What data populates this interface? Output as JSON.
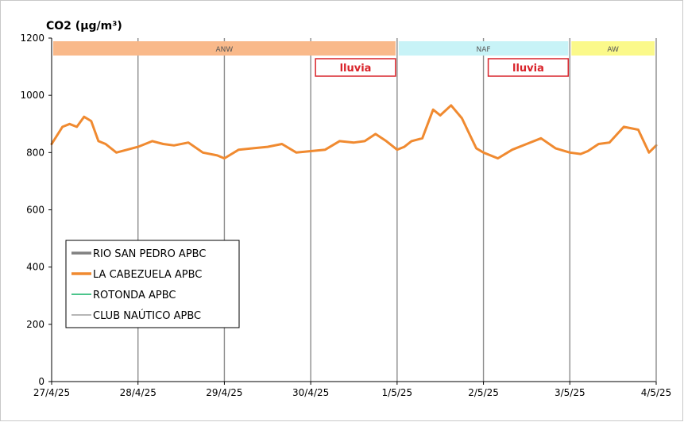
{
  "chart_data": {
    "type": "line",
    "title": "CO2 (µg/m³)",
    "xlabel": "",
    "ylabel": "",
    "ylim": [
      0,
      1200
    ],
    "yticks": [
      0,
      200,
      400,
      600,
      800,
      1000,
      1200
    ],
    "xlim": [
      "2025-04-27",
      "2025-05-04"
    ],
    "xtick_labels": [
      "27/4/25",
      "28/4/25",
      "29/4/25",
      "30/4/25",
      "1/5/25",
      "2/5/25",
      "3/5/25",
      "4/5/25"
    ],
    "grid": "vertical at each day",
    "legend_position": "lower-left",
    "legend": [
      {
        "label": "RIO SAN PEDRO APBC",
        "color": "#808080"
      },
      {
        "label": "LA CABEZUELA  APBC",
        "color": "#f08a30"
      },
      {
        "label": "ROTONDA  APBC",
        "color": "#4cc58c"
      },
      {
        "label": "CLUB NAÚTICO  APBC",
        "color": "#9e9e9e"
      }
    ],
    "bands": [
      {
        "label": "ANW",
        "from": "2025-04-27",
        "to": "2025-05-01",
        "color": "#f9b98a"
      },
      {
        "label": "NAF",
        "from": "2025-05-01",
        "to": "2025-05-03",
        "color": "#c8f3f7"
      },
      {
        "label": "AW",
        "from": "2025-05-03",
        "to": "2025-05-04",
        "color": "#fbf98a"
      }
    ],
    "annotations": [
      {
        "label": "lluvia",
        "from": "2025-04-30",
        "to": "2025-05-01",
        "color": "#d9232a"
      },
      {
        "label": "lluvia",
        "from": "2025-05-02",
        "to": "2025-05-03",
        "color": "#d9232a"
      }
    ],
    "series": [
      {
        "name": "LA CABEZUELA  APBC",
        "color": "#f08a30",
        "x": [
          "2025-04-27",
          "2025-04-27 03:00",
          "2025-04-27 05:00",
          "2025-04-27 07:00",
          "2025-04-27 09:00",
          "2025-04-27 11:00",
          "2025-04-27 13:00",
          "2025-04-27 15:00",
          "2025-04-27 18:00",
          "2025-04-27 21:00",
          "2025-04-28",
          "2025-04-28 04:00",
          "2025-04-28 07:00",
          "2025-04-28 10:00",
          "2025-04-28 14:00",
          "2025-04-28 18:00",
          "2025-04-28 22:00",
          "2025-04-29",
          "2025-04-29 04:00",
          "2025-04-29 08:00",
          "2025-04-29 12:00",
          "2025-04-29 16:00",
          "2025-04-29 20:00",
          "2025-04-30",
          "2025-04-30 04:00",
          "2025-04-30 08:00",
          "2025-04-30 12:00",
          "2025-04-30 15:00",
          "2025-04-30 18:00",
          "2025-04-30 21:00",
          "2025-05-01",
          "2025-05-01 02:00",
          "2025-05-01 04:00",
          "2025-05-01 07:00",
          "2025-05-01 10:00",
          "2025-05-01 12:00",
          "2025-05-01 15:00",
          "2025-05-01 18:00",
          "2025-05-01 22:00",
          "2025-05-02",
          "2025-05-02 04:00",
          "2025-05-02 08:00",
          "2025-05-02 12:00",
          "2025-05-02 16:00",
          "2025-05-02 20:00",
          "2025-05-03",
          "2025-05-03 03:00",
          "2025-05-03 05:00",
          "2025-05-03 08:00",
          "2025-05-03 11:00",
          "2025-05-03 15:00",
          "2025-05-03 19:00",
          "2025-05-03 22:00",
          "2025-05-04"
        ],
        "values": [
          830,
          890,
          900,
          890,
          925,
          910,
          840,
          830,
          800,
          810,
          820,
          840,
          830,
          825,
          835,
          800,
          790,
          780,
          810,
          815,
          820,
          830,
          800,
          805,
          810,
          840,
          835,
          840,
          865,
          840,
          810,
          820,
          840,
          850,
          950,
          930,
          965,
          920,
          815,
          800,
          780,
          810,
          830,
          850,
          815,
          800,
          795,
          805,
          830,
          835,
          890,
          880,
          800,
          825
        ]
      }
    ]
  }
}
